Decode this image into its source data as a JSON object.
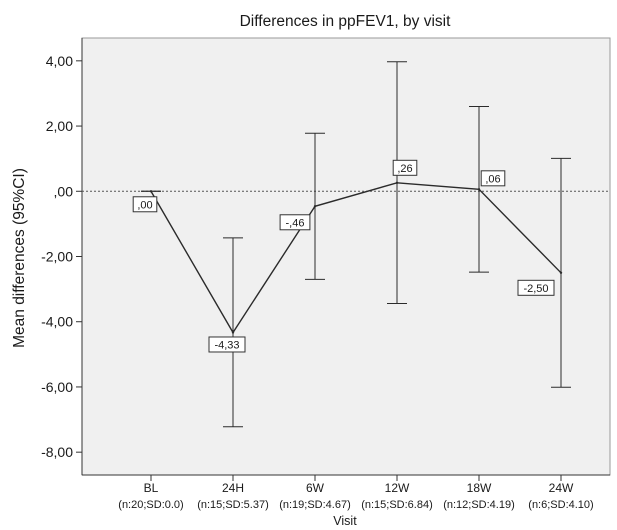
{
  "chart_data": {
    "type": "line",
    "title": "Differences in ppFEV1, by visit",
    "xlabel": "Visit",
    "ylabel": "Mean differences (95%CI)",
    "ylim": [
      -8.7,
      4.7
    ],
    "yticks": [
      4,
      2,
      0,
      -2,
      -4,
      -6,
      -8
    ],
    "ytick_labels": [
      "4,00",
      "2,00",
      ",00",
      "-2,00",
      "-4,00",
      "-6,00",
      "-8,00"
    ],
    "grid": false,
    "reference_line": 0,
    "colors": {
      "plot_bg": "#f0f0f0",
      "line": "#2b2b2b",
      "ref_line": "#555555"
    },
    "categories": [
      "BL",
      "24H",
      "6W",
      "12W",
      "18W",
      "24W"
    ],
    "category_sublabels": [
      "(n:20;SD:0.0)",
      "(n:15;SD:5.37)",
      "(n:19;SD:4.67)",
      "(n:15;SD:6.84)",
      "(n:12;SD:4.19)",
      "(n:6;SD:4.10)"
    ],
    "series": [
      {
        "values": [
          0.0,
          -4.33,
          -0.46,
          0.26,
          0.06,
          -2.5
        ],
        "ci_lower": [
          0.0,
          -7.22,
          -2.7,
          -3.44,
          -2.48,
          -6.01
        ],
        "ci_upper": [
          0.0,
          -1.43,
          1.78,
          3.97,
          2.6,
          1.01
        ],
        "data_labels": [
          ",00",
          "-4,33",
          "-,46",
          ",26",
          ",06",
          "-2,50"
        ]
      }
    ]
  }
}
